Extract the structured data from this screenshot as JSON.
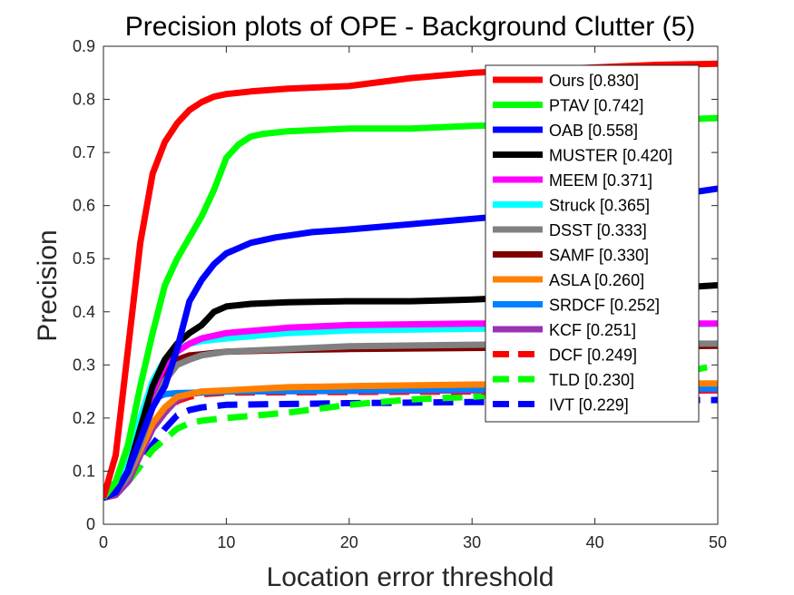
{
  "chart_data": {
    "type": "line",
    "title": "Precision plots of OPE - Background Clutter (5)",
    "xlabel": "Location error threshold",
    "ylabel": "Precision",
    "xlim": [
      0,
      50
    ],
    "ylim": [
      0,
      0.9
    ],
    "xticks": [
      0,
      10,
      20,
      30,
      40,
      50
    ],
    "yticks": [
      0,
      0.1,
      0.2,
      0.3,
      0.4,
      0.5,
      0.6,
      0.7,
      0.8,
      0.9
    ],
    "grid": false,
    "legend_position": "top-right",
    "series": [
      {
        "name": "Ours [0.830]",
        "color": "#ff0000",
        "style": "solid",
        "points": [
          [
            0,
            0.05
          ],
          [
            1,
            0.13
          ],
          [
            2,
            0.33
          ],
          [
            3,
            0.53
          ],
          [
            4,
            0.66
          ],
          [
            5,
            0.72
          ],
          [
            6,
            0.755
          ],
          [
            7,
            0.78
          ],
          [
            8,
            0.795
          ],
          [
            9,
            0.805
          ],
          [
            10,
            0.81
          ],
          [
            12,
            0.815
          ],
          [
            15,
            0.82
          ],
          [
            20,
            0.825
          ],
          [
            25,
            0.84
          ],
          [
            30,
            0.85
          ],
          [
            35,
            0.855
          ],
          [
            40,
            0.86
          ],
          [
            45,
            0.865
          ],
          [
            50,
            0.867
          ]
        ]
      },
      {
        "name": "PTAV [0.742]",
        "color": "#00ff00",
        "style": "solid",
        "points": [
          [
            0,
            0.05
          ],
          [
            1,
            0.08
          ],
          [
            2,
            0.15
          ],
          [
            3,
            0.26
          ],
          [
            4,
            0.36
          ],
          [
            5,
            0.45
          ],
          [
            6,
            0.5
          ],
          [
            7,
            0.54
          ],
          [
            8,
            0.58
          ],
          [
            9,
            0.63
          ],
          [
            10,
            0.69
          ],
          [
            11,
            0.715
          ],
          [
            12,
            0.73
          ],
          [
            13,
            0.735
          ],
          [
            15,
            0.74
          ],
          [
            20,
            0.745
          ],
          [
            25,
            0.745
          ],
          [
            30,
            0.75
          ],
          [
            35,
            0.752
          ],
          [
            40,
            0.755
          ],
          [
            45,
            0.76
          ],
          [
            50,
            0.765
          ]
        ]
      },
      {
        "name": "OAB [0.558]",
        "color": "#0000ff",
        "style": "solid",
        "points": [
          [
            0,
            0.05
          ],
          [
            1,
            0.06
          ],
          [
            2,
            0.1
          ],
          [
            3,
            0.16
          ],
          [
            4,
            0.22
          ],
          [
            5,
            0.26
          ],
          [
            6,
            0.33
          ],
          [
            7,
            0.42
          ],
          [
            8,
            0.46
          ],
          [
            9,
            0.49
          ],
          [
            10,
            0.51
          ],
          [
            12,
            0.53
          ],
          [
            14,
            0.54
          ],
          [
            17,
            0.55
          ],
          [
            20,
            0.555
          ],
          [
            25,
            0.565
          ],
          [
            30,
            0.575
          ],
          [
            35,
            0.585
          ],
          [
            40,
            0.6
          ],
          [
            45,
            0.615
          ],
          [
            50,
            0.632
          ]
        ]
      },
      {
        "name": "MUSTER [0.420]",
        "color": "#000000",
        "style": "solid",
        "points": [
          [
            0,
            0.05
          ],
          [
            1,
            0.06
          ],
          [
            2,
            0.1
          ],
          [
            3,
            0.18
          ],
          [
            4,
            0.26
          ],
          [
            5,
            0.31
          ],
          [
            6,
            0.34
          ],
          [
            7,
            0.36
          ],
          [
            8,
            0.375
          ],
          [
            9,
            0.4
          ],
          [
            10,
            0.41
          ],
          [
            12,
            0.415
          ],
          [
            15,
            0.418
          ],
          [
            20,
            0.42
          ],
          [
            25,
            0.42
          ],
          [
            30,
            0.423
          ],
          [
            35,
            0.428
          ],
          [
            40,
            0.435
          ],
          [
            45,
            0.443
          ],
          [
            50,
            0.45
          ]
        ]
      },
      {
        "name": "MEEM [0.371]",
        "color": "#ff00ff",
        "style": "solid",
        "points": [
          [
            0,
            0.05
          ],
          [
            1,
            0.06
          ],
          [
            2,
            0.1
          ],
          [
            3,
            0.18
          ],
          [
            4,
            0.25
          ],
          [
            5,
            0.3
          ],
          [
            6,
            0.325
          ],
          [
            7,
            0.34
          ],
          [
            8,
            0.35
          ],
          [
            10,
            0.36
          ],
          [
            15,
            0.37
          ],
          [
            20,
            0.375
          ],
          [
            30,
            0.378
          ],
          [
            40,
            0.378
          ],
          [
            50,
            0.378
          ]
        ]
      },
      {
        "name": "Struck [0.365]",
        "color": "#00ffff",
        "style": "solid",
        "points": [
          [
            0,
            0.05
          ],
          [
            1,
            0.07
          ],
          [
            2,
            0.12
          ],
          [
            3,
            0.2
          ],
          [
            4,
            0.27
          ],
          [
            5,
            0.31
          ],
          [
            6,
            0.33
          ],
          [
            7,
            0.34
          ],
          [
            8,
            0.345
          ],
          [
            10,
            0.35
          ],
          [
            15,
            0.36
          ],
          [
            20,
            0.365
          ],
          [
            30,
            0.368
          ],
          [
            40,
            0.37
          ],
          [
            50,
            0.378
          ]
        ]
      },
      {
        "name": "DSST [0.333]",
        "color": "#808080",
        "style": "solid",
        "points": [
          [
            0,
            0.05
          ],
          [
            1,
            0.06
          ],
          [
            2,
            0.09
          ],
          [
            3,
            0.15
          ],
          [
            4,
            0.22
          ],
          [
            5,
            0.27
          ],
          [
            6,
            0.3
          ],
          [
            7,
            0.31
          ],
          [
            8,
            0.318
          ],
          [
            10,
            0.325
          ],
          [
            15,
            0.33
          ],
          [
            20,
            0.335
          ],
          [
            30,
            0.338
          ],
          [
            40,
            0.34
          ],
          [
            50,
            0.34
          ]
        ]
      },
      {
        "name": "SAMF [0.330]",
        "color": "#800000",
        "style": "solid",
        "points": [
          [
            0,
            0.05
          ],
          [
            1,
            0.06
          ],
          [
            2,
            0.1
          ],
          [
            3,
            0.17
          ],
          [
            4,
            0.24
          ],
          [
            5,
            0.29
          ],
          [
            6,
            0.31
          ],
          [
            7,
            0.318
          ],
          [
            8,
            0.32
          ],
          [
            10,
            0.325
          ],
          [
            15,
            0.328
          ],
          [
            20,
            0.33
          ],
          [
            30,
            0.332
          ],
          [
            40,
            0.334
          ],
          [
            50,
            0.336
          ]
        ]
      },
      {
        "name": "ASLA [0.260]",
        "color": "#ff8000",
        "style": "solid",
        "points": [
          [
            0,
            0.05
          ],
          [
            1,
            0.06
          ],
          [
            2,
            0.09
          ],
          [
            3,
            0.14
          ],
          [
            4,
            0.19
          ],
          [
            5,
            0.22
          ],
          [
            6,
            0.24
          ],
          [
            7,
            0.245
          ],
          [
            8,
            0.25
          ],
          [
            10,
            0.252
          ],
          [
            15,
            0.258
          ],
          [
            20,
            0.26
          ],
          [
            30,
            0.263
          ],
          [
            40,
            0.265
          ],
          [
            50,
            0.265
          ]
        ]
      },
      {
        "name": "SRDCF [0.252]",
        "color": "#0080ff",
        "style": "solid",
        "points": [
          [
            0,
            0.05
          ],
          [
            1,
            0.07
          ],
          [
            2,
            0.12
          ],
          [
            3,
            0.2
          ],
          [
            4,
            0.235
          ],
          [
            5,
            0.245
          ],
          [
            6,
            0.247
          ],
          [
            8,
            0.248
          ],
          [
            10,
            0.25
          ],
          [
            20,
            0.252
          ],
          [
            30,
            0.255
          ],
          [
            40,
            0.255
          ],
          [
            50,
            0.256
          ]
        ]
      },
      {
        "name": "KCF [0.251]",
        "color": "#9933b3",
        "style": "solid",
        "points": [
          [
            0,
            0.05
          ],
          [
            1,
            0.055
          ],
          [
            2,
            0.08
          ],
          [
            3,
            0.13
          ],
          [
            4,
            0.18
          ],
          [
            5,
            0.21
          ],
          [
            6,
            0.235
          ],
          [
            7,
            0.245
          ],
          [
            8,
            0.248
          ],
          [
            10,
            0.25
          ],
          [
            20,
            0.251
          ],
          [
            30,
            0.252
          ],
          [
            40,
            0.253
          ],
          [
            50,
            0.254
          ]
        ]
      },
      {
        "name": "DCF [0.249]",
        "color": "#ff0000",
        "style": "dashed",
        "points": [
          [
            0,
            0.05
          ],
          [
            1,
            0.055
          ],
          [
            2,
            0.08
          ],
          [
            3,
            0.13
          ],
          [
            4,
            0.18
          ],
          [
            5,
            0.21
          ],
          [
            6,
            0.232
          ],
          [
            7,
            0.24
          ],
          [
            8,
            0.245
          ],
          [
            10,
            0.248
          ],
          [
            20,
            0.249
          ],
          [
            30,
            0.25
          ],
          [
            40,
            0.251
          ],
          [
            50,
            0.252
          ]
        ]
      },
      {
        "name": "TLD [0.230]",
        "color": "#00ff00",
        "style": "dashed",
        "points": [
          [
            0,
            0.05
          ],
          [
            1,
            0.06
          ],
          [
            2,
            0.08
          ],
          [
            3,
            0.11
          ],
          [
            4,
            0.14
          ],
          [
            5,
            0.16
          ],
          [
            6,
            0.18
          ],
          [
            7,
            0.19
          ],
          [
            8,
            0.195
          ],
          [
            10,
            0.2
          ],
          [
            15,
            0.21
          ],
          [
            20,
            0.225
          ],
          [
            25,
            0.235
          ],
          [
            30,
            0.24
          ],
          [
            35,
            0.25
          ],
          [
            40,
            0.26
          ],
          [
            45,
            0.275
          ],
          [
            50,
            0.3
          ]
        ]
      },
      {
        "name": "IVT [0.229]",
        "color": "#0000ff",
        "style": "dashed",
        "points": [
          [
            0,
            0.05
          ],
          [
            1,
            0.06
          ],
          [
            2,
            0.08
          ],
          [
            3,
            0.11
          ],
          [
            4,
            0.15
          ],
          [
            5,
            0.18
          ],
          [
            6,
            0.205
          ],
          [
            7,
            0.215
          ],
          [
            8,
            0.22
          ],
          [
            10,
            0.225
          ],
          [
            20,
            0.228
          ],
          [
            30,
            0.23
          ],
          [
            40,
            0.232
          ],
          [
            50,
            0.234
          ]
        ]
      }
    ]
  }
}
